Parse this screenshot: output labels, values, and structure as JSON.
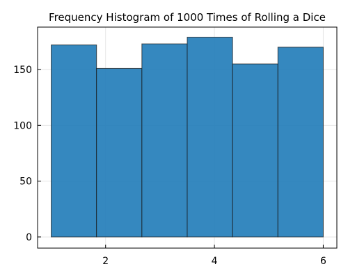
{
  "chart_data": {
    "type": "bar",
    "title": "Frequency Histogram of 1000 Times of Rolling a Dice",
    "xlabel": "",
    "ylabel": "",
    "bins": [
      {
        "start": 1.0,
        "end": 1.8333,
        "value": 172
      },
      {
        "start": 1.8333,
        "end": 2.6667,
        "value": 151
      },
      {
        "start": 2.6667,
        "end": 3.5,
        "value": 173
      },
      {
        "start": 3.5,
        "end": 4.3333,
        "value": 179
      },
      {
        "start": 4.3333,
        "end": 5.1667,
        "value": 155
      },
      {
        "start": 5.1667,
        "end": 6.0,
        "value": 170
      }
    ],
    "xlim": [
      0.75,
      6.25
    ],
    "ylim": [
      -10,
      188
    ],
    "xticks": [
      2,
      4,
      6
    ],
    "yticks": [
      0,
      50,
      100,
      150
    ],
    "grid": true,
    "bar_color": "#1f7bb8",
    "bar_opacity": 0.9
  }
}
